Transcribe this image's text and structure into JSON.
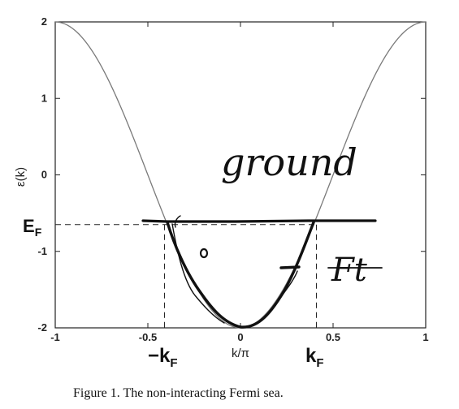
{
  "chart_data": {
    "type": "line",
    "caption": "Figure 1. The non-interacting Fermi sea.",
    "ylabel": "ε(k)",
    "xlabel": "k/π",
    "xlim": [
      -1,
      1
    ],
    "ylim": [
      -2,
      2
    ],
    "x_ticks": [
      -1,
      -0.5,
      0,
      0.5,
      1
    ],
    "x_tick_labels": [
      "-1",
      "-0.5",
      "0",
      "0.5",
      "1"
    ],
    "y_ticks": [
      -2,
      -1,
      0,
      1,
      2
    ],
    "y_tick_labels": [
      "-2",
      "-1",
      "0",
      "1",
      "2"
    ],
    "series": [
      {
        "function": "-2cos(πk)",
        "x_range": [
          -1,
          1
        ],
        "color": "#7a7a7a"
      }
    ],
    "fermi_level": {
      "y": -0.65,
      "kF": 0.41
    },
    "labels": {
      "ef": "E",
      "ef_sub": "F",
      "neg_kf": "−k",
      "pos_kf": "k",
      "kf_sub": "F"
    },
    "annotations": {
      "word_ground": "ground",
      "word_right": "Ft"
    },
    "grid": false
  }
}
